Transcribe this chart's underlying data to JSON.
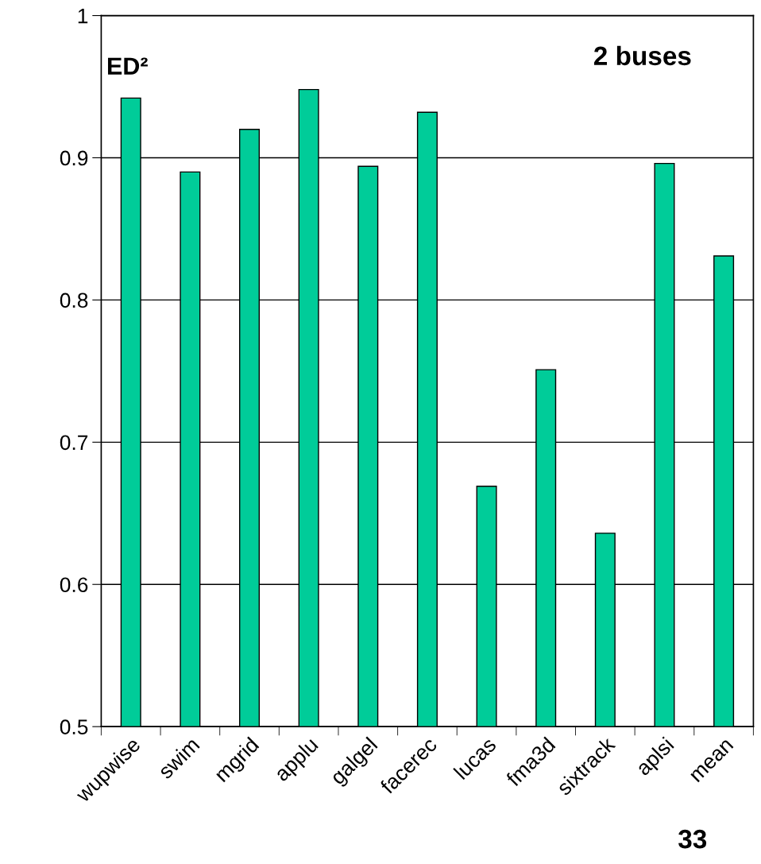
{
  "chart_data": {
    "type": "bar",
    "ylabel": "ED²",
    "categories": [
      "wupwise",
      "swim",
      "mgrid",
      "applu",
      "galgel",
      "facerec",
      "lucas",
      "fma3d",
      "sixtrack",
      "aplsi",
      "mean"
    ],
    "values": [
      0.942,
      0.89,
      0.92,
      0.948,
      0.894,
      0.932,
      0.669,
      0.751,
      0.636,
      0.896,
      0.831
    ],
    "color": "#00cc99",
    "ylim": [
      0.5,
      1
    ],
    "yticks": [
      0.5,
      0.6,
      0.7,
      0.8,
      0.9,
      1
    ],
    "grid": "y",
    "annotations": [
      "2 buses",
      "33"
    ]
  }
}
